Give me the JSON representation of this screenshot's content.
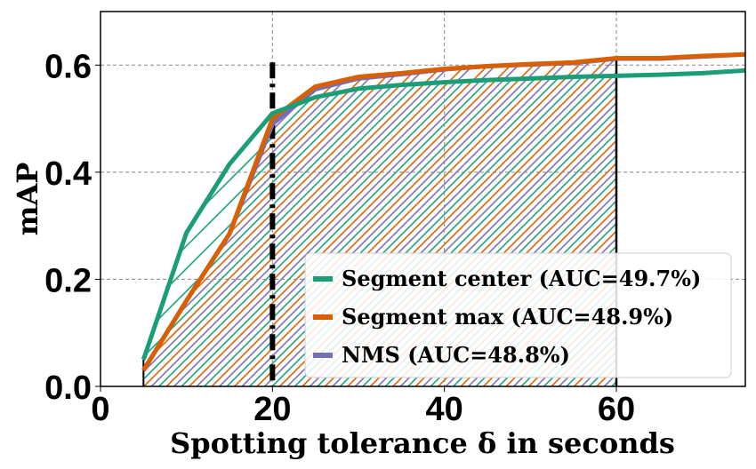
{
  "chart_data": {
    "type": "line",
    "title": "",
    "xlabel": "Spotting tolerance δ in seconds",
    "ylabel": "mAP",
    "xlim": [
      0,
      75
    ],
    "ylim": [
      0,
      0.7
    ],
    "xticks": [
      "0",
      "20",
      "40",
      "60"
    ],
    "xtick_values": [
      0,
      20,
      40,
      60
    ],
    "yticks": [
      "0.0",
      "0.2",
      "0.4",
      "0.6"
    ],
    "ytick_values": [
      0,
      0.2,
      0.4,
      0.6
    ],
    "grid": true,
    "legend_position": "lower-right",
    "x": [
      5,
      10,
      15,
      20,
      25,
      30,
      35,
      40,
      45,
      50,
      55,
      60,
      65,
      70,
      75
    ],
    "series": [
      {
        "name": "Segment center (AUC=49.7%)",
        "color": "#1b9e77",
        "values": [
          0.05,
          0.287,
          0.415,
          0.51,
          0.54,
          0.556,
          0.563,
          0.568,
          0.572,
          0.575,
          0.578,
          0.58,
          0.582,
          0.585,
          0.59
        ]
      },
      {
        "name": "Segment max (AUC=48.9%)",
        "color": "#d95f02",
        "values": [
          0.03,
          0.16,
          0.285,
          0.5,
          0.56,
          0.578,
          0.585,
          0.593,
          0.598,
          0.602,
          0.605,
          0.613,
          0.613,
          0.617,
          0.62
        ]
      },
      {
        "name": "NMS (AUC=48.8%)",
        "color": "#7570b3",
        "values": [
          0.03,
          0.16,
          0.285,
          0.49,
          0.555,
          0.575,
          0.583,
          0.592,
          0.598,
          0.601,
          0.604,
          0.612,
          0.612,
          0.616,
          0.62
        ]
      }
    ],
    "annotations": [
      {
        "type": "vline",
        "x": 20,
        "style": "dash-dot",
        "ymax": 0.605
      },
      {
        "type": "vline",
        "x": 60,
        "style": "solid"
      },
      {
        "type": "hatched-area",
        "x_range": [
          5,
          60
        ]
      }
    ]
  }
}
